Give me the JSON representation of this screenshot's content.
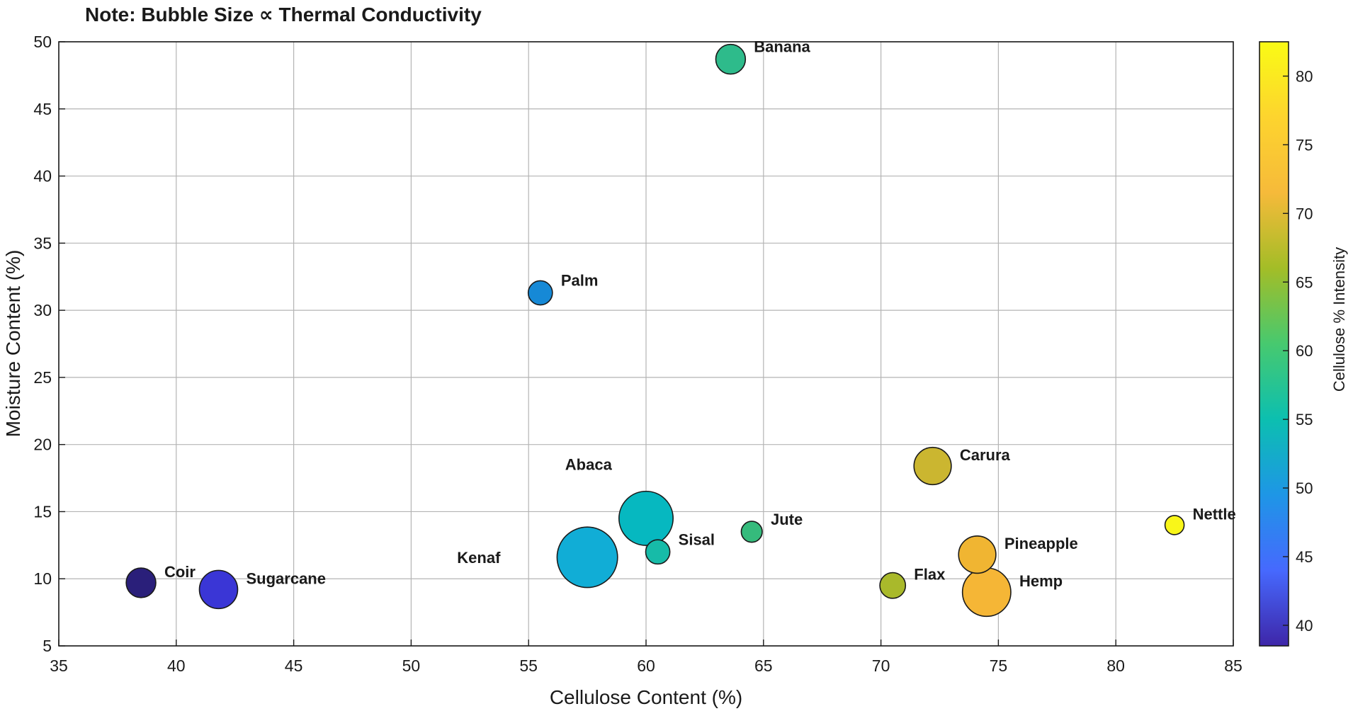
{
  "chart_data": {
    "type": "scatter",
    "title": "Note: Bubble Size ∝ Thermal Conductivity",
    "xlabel": "Cellulose Content (%)",
    "ylabel": "Moisture Content (%)",
    "colorbar_label": "Cellulose % Intensity",
    "xlim": [
      35,
      85
    ],
    "ylim": [
      5,
      50
    ],
    "xticks": [
      35,
      40,
      45,
      50,
      55,
      60,
      65,
      70,
      75,
      80,
      85
    ],
    "yticks": [
      5,
      10,
      15,
      20,
      25,
      30,
      35,
      40,
      45,
      50
    ],
    "colorbar_range": [
      38.5,
      82.5
    ],
    "colorbar_ticks": [
      40,
      45,
      50,
      55,
      60,
      65,
      70,
      75,
      80
    ],
    "grid": true,
    "colormap": [
      "#3e26a8",
      "#4669fe",
      "#1e96e6",
      "#0cbfb0",
      "#47c96f",
      "#a3bd27",
      "#f6ba3a",
      "#fdd42e",
      "#f9fb15"
    ],
    "series": [
      {
        "label": "Coir",
        "x": 38.5,
        "y": 9.7,
        "size": 0.6,
        "color": "#2a1f7a"
      },
      {
        "label": "Sugarcane",
        "x": 41.8,
        "y": 9.2,
        "size": 1.0,
        "color": "#3a36d6"
      },
      {
        "label": "Palm",
        "x": 55.5,
        "y": 31.3,
        "size": 0.4,
        "color": "#1689d6"
      },
      {
        "label": "Kenaf",
        "x": 57.5,
        "y": 11.6,
        "size": 2.5,
        "color": "#11add6"
      },
      {
        "label": "Abaca",
        "x": 60.0,
        "y": 14.5,
        "size": 2.0,
        "color": "#06b8c0"
      },
      {
        "label": "Sisal",
        "x": 60.5,
        "y": 12.0,
        "size": 0.4,
        "color": "#17bba8"
      },
      {
        "label": "Banana",
        "x": 63.6,
        "y": 48.7,
        "size": 0.6,
        "color": "#2ebb8b"
      },
      {
        "label": "Jute",
        "x": 64.5,
        "y": 13.5,
        "size": 0.3,
        "color": "#35bb7c"
      },
      {
        "label": "Flax",
        "x": 70.5,
        "y": 9.5,
        "size": 0.45,
        "color": "#a9b92b"
      },
      {
        "label": "Carura",
        "x": 72.2,
        "y": 18.4,
        "size": 0.95,
        "color": "#cbb630"
      },
      {
        "label": "Pineapple",
        "x": 74.1,
        "y": 11.8,
        "size": 0.95,
        "color": "#f0b532"
      },
      {
        "label": "Hemp",
        "x": 74.5,
        "y": 9.0,
        "size": 1.6,
        "color": "#f5b636"
      },
      {
        "label": "Nettle",
        "x": 82.5,
        "y": 14.0,
        "size": 0.25,
        "color": "#f9f619"
      }
    ]
  }
}
